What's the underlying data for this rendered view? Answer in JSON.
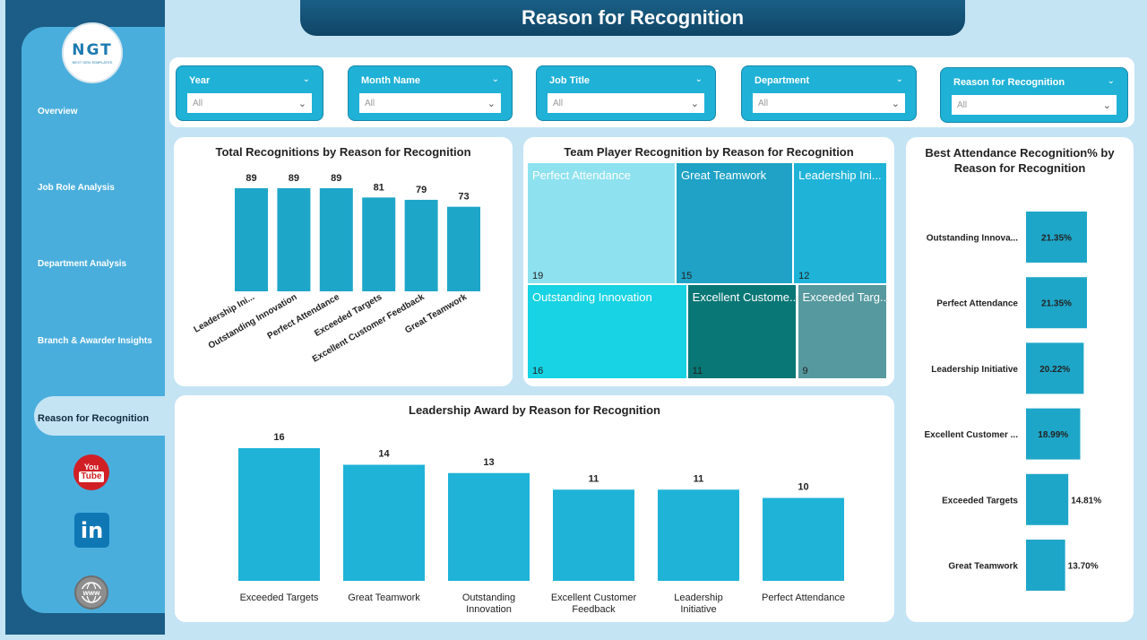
{
  "title": "Reason for Recognition",
  "logo": {
    "text": "NGT",
    "subtitle": "NEXT GEN TEMPLATES"
  },
  "nav": {
    "items": [
      "Overview",
      "Job Role Analysis",
      "Department Analysis",
      "Branch & Awarder Insights"
    ],
    "active": "Reason for Recognition"
  },
  "social": {
    "youtube_top": "You",
    "youtube_box": "Tube",
    "linkedin": "in",
    "web": "www"
  },
  "filters": [
    {
      "title": "Year",
      "value": "All"
    },
    {
      "title": "Month Name",
      "value": "All"
    },
    {
      "title": "Job Title",
      "value": "All"
    },
    {
      "title": "Department",
      "value": "All"
    },
    {
      "title": "Reason for Recognition",
      "value": "All"
    }
  ],
  "chart_data": [
    {
      "type": "bar",
      "title": "Total Recognitions by Reason for Recognition",
      "categories": [
        "Leadership Ini...",
        "Outstanding Innovation",
        "Perfect Attendance",
        "Exceeded Targets",
        "Excellent Customer Feedback",
        "Great Teamwork"
      ],
      "values": [
        89,
        89,
        89,
        81,
        79,
        73
      ],
      "ylim": [
        0,
        89
      ],
      "color": "#1ea6c8"
    },
    {
      "type": "treemap",
      "title": "Team Player Recognition by Reason for Recognition",
      "items": [
        {
          "label": "Perfect Attendance",
          "value": 19,
          "color": "#8ee1ef"
        },
        {
          "label": "Great Teamwork",
          "value": 15,
          "color": "#1fa2c6"
        },
        {
          "label": "Leadership Ini...",
          "value": 12,
          "color": "#1fb3d8"
        },
        {
          "label": "Outstanding Innovation",
          "value": 16,
          "color": "#17d3e3"
        },
        {
          "label": "Excellent Custome...",
          "value": 11,
          "color": "#097775"
        },
        {
          "label": "Exceeded Targ...",
          "value": 9,
          "color": "#56999e"
        }
      ]
    },
    {
      "type": "bar",
      "title": "Leadership Award by Reason for Recognition",
      "categories": [
        "Exceeded Targets",
        "Great Teamwork",
        "Outstanding Innovation",
        "Excellent Customer Feedback",
        "Leadership Initiative",
        "Perfect Attendance"
      ],
      "values": [
        16,
        14,
        13,
        11,
        11,
        10
      ],
      "ylim": [
        0,
        16
      ],
      "color": "#1fb3d8"
    },
    {
      "type": "bar",
      "orientation": "horizontal",
      "title": "Best Attendance Recognition% by Reason for Recognition",
      "categories": [
        "Outstanding Innova...",
        "Perfect Attendance",
        "Leadership Initiative",
        "Excellent Customer ...",
        "Exceeded Targets",
        "Great Teamwork"
      ],
      "values": [
        21.35,
        21.35,
        20.22,
        18.99,
        14.81,
        13.7
      ],
      "labels": [
        "21.35%",
        "21.35%",
        "20.22%",
        "18.99%",
        "14.81%",
        "13.70%"
      ],
      "xlim": [
        0,
        21.35
      ],
      "color": "#1ea6c8"
    }
  ]
}
